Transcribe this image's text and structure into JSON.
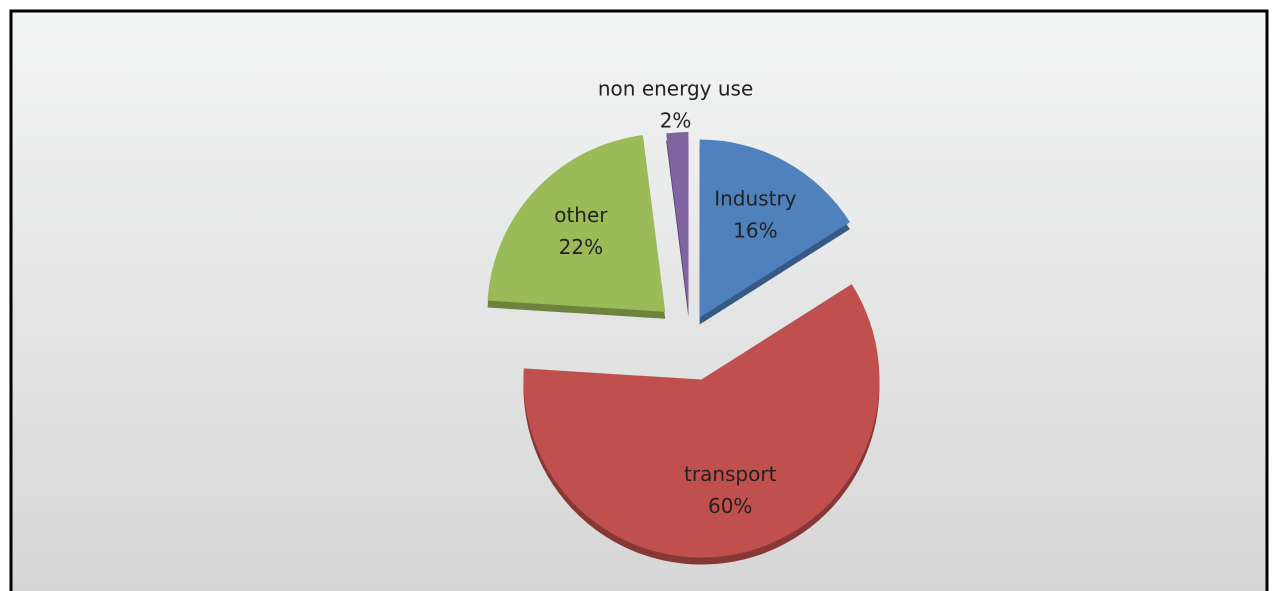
{
  "chart_data": {
    "type": "pie",
    "categories": [
      "Industry",
      "transport",
      "other",
      "non energy use"
    ],
    "values": [
      16,
      60,
      22,
      2
    ],
    "value_labels": [
      "16%",
      "60%",
      "22%",
      "2%"
    ],
    "colors": [
      "#4f81bd",
      "#c0504d",
      "#9bbb59",
      "#8064a2"
    ]
  }
}
